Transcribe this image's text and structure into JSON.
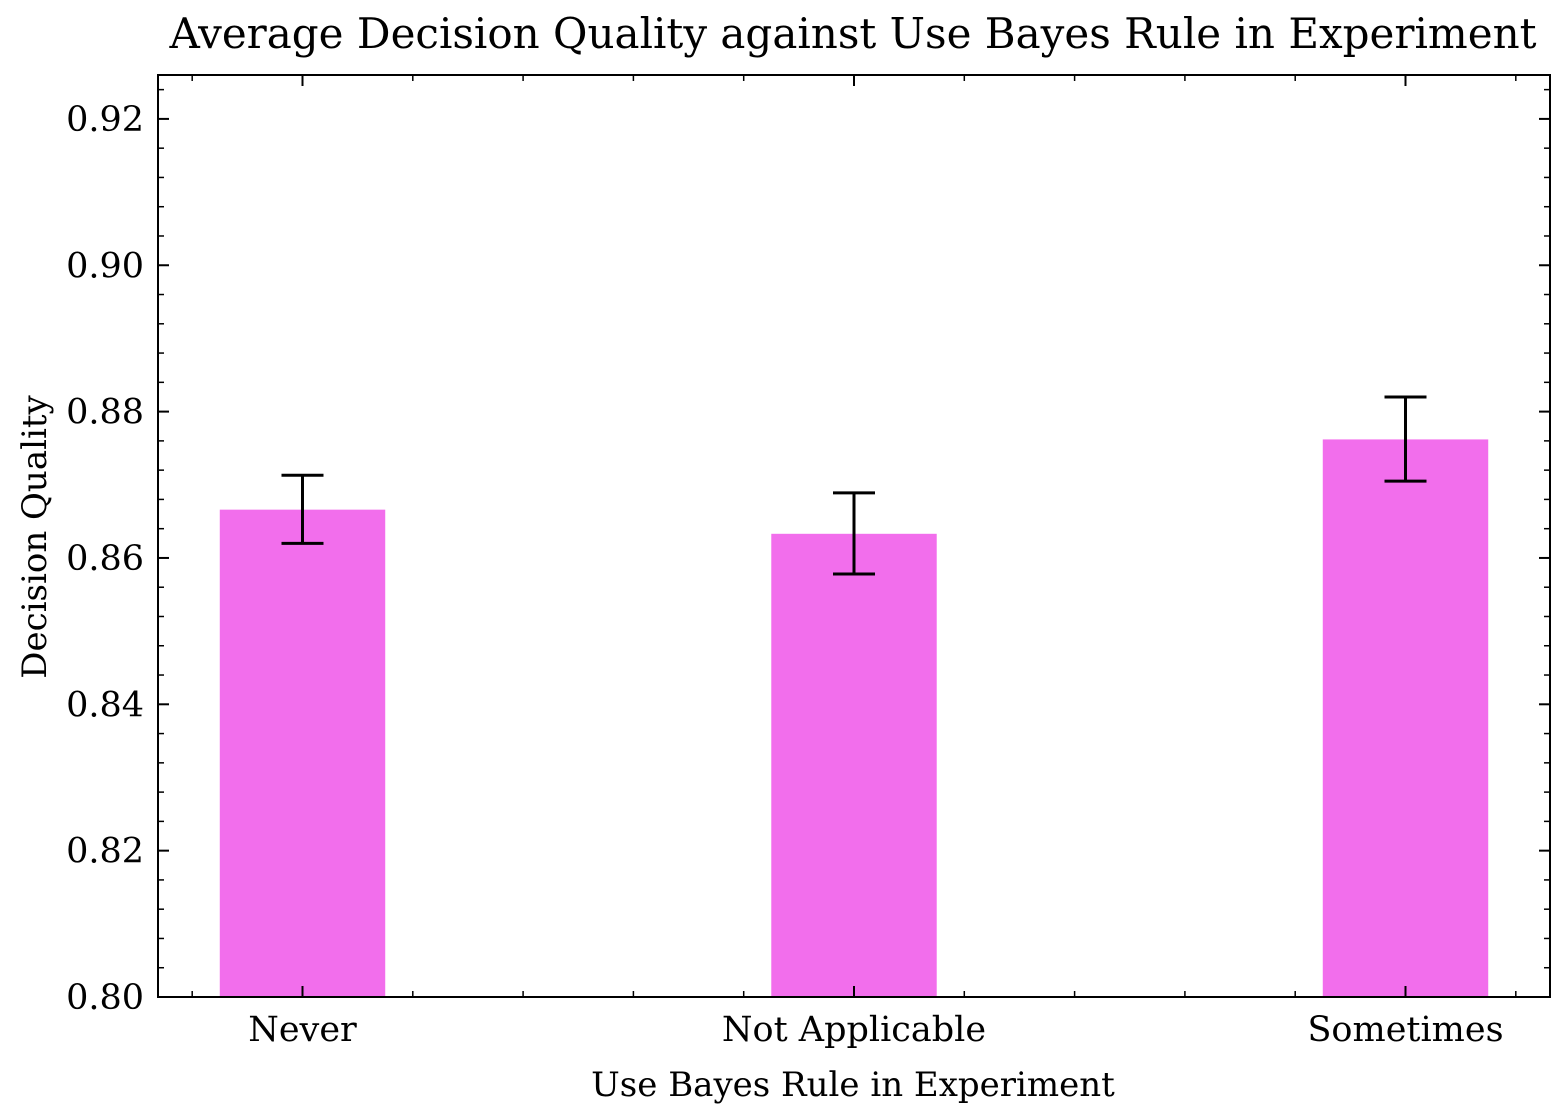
{
  "chart_data": {
    "type": "bar",
    "title": "Average Decision Quality against Use Bayes Rule in Experiment",
    "xlabel": "Use Bayes Rule in Experiment",
    "ylabel": "Decision Quality",
    "categories": [
      "Never",
      "Not Applicable",
      "Sometimes"
    ],
    "values": [
      0.8666,
      0.8633,
      0.8762
    ],
    "error_low": [
      0.862,
      0.8578,
      0.8705
    ],
    "error_high": [
      0.8713,
      0.8689,
      0.882
    ],
    "ylim": [
      0.8,
      0.926
    ],
    "yticks": [
      0.8,
      0.82,
      0.84,
      0.86,
      0.88,
      0.9,
      0.92
    ],
    "ytick_labels": [
      "0.80",
      "0.82",
      "0.84",
      "0.86",
      "0.88",
      "0.90",
      "0.92"
    ],
    "bar_color": "#f26eec",
    "error_color": "#000000",
    "grid": false
  }
}
